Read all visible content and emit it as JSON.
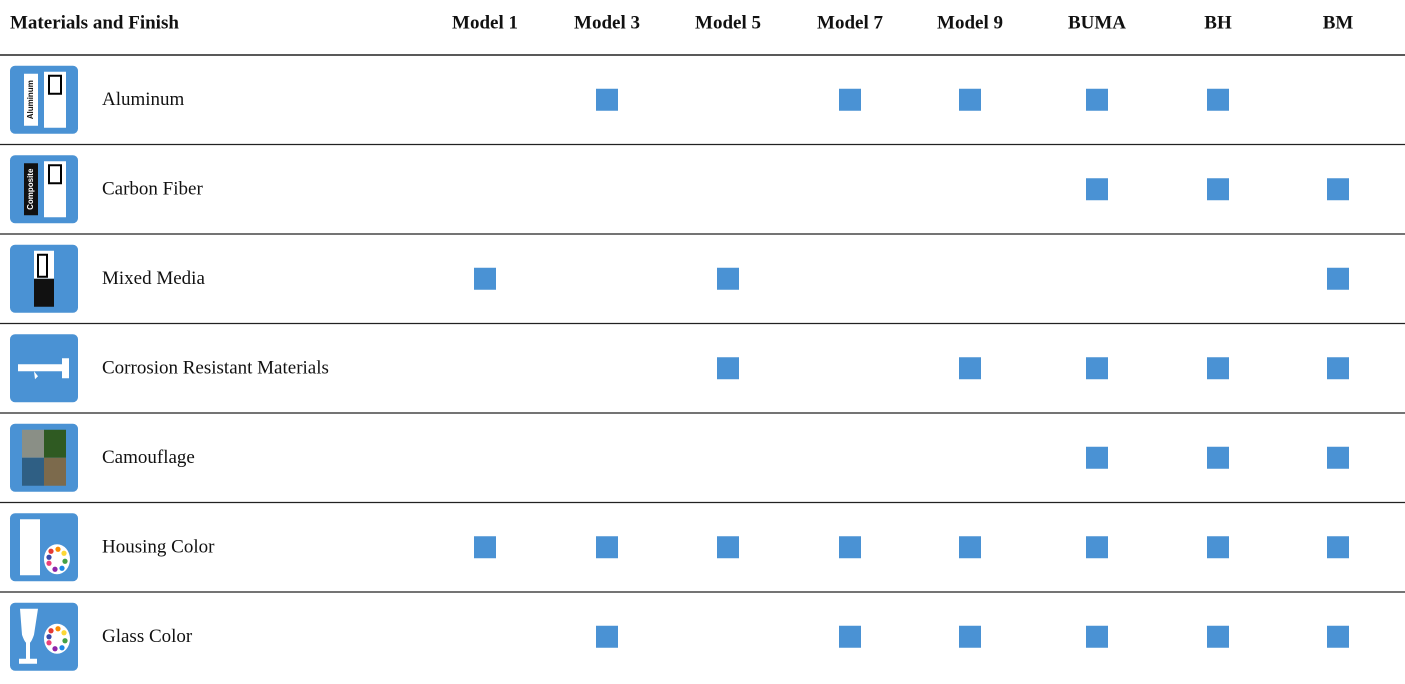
{
  "table": {
    "header": [
      "Materials and Finish",
      "Model 1",
      "Model 3",
      "Model 5",
      "Model 7",
      "Model 9",
      "BUMA",
      "BH",
      "BM"
    ],
    "rows": [
      {
        "icon_text": "Aluminum",
        "label": "Aluminum",
        "available": [
          false,
          true,
          false,
          true,
          true,
          true,
          true,
          false
        ]
      },
      {
        "icon_text": "Composite",
        "label": "Carbon Fiber",
        "available": [
          false,
          false,
          false,
          false,
          false,
          true,
          true,
          true
        ]
      },
      {
        "label": "Mixed Media",
        "available": [
          true,
          false,
          true,
          false,
          false,
          false,
          false,
          true
        ]
      },
      {
        "label": "Corrosion Resistant Materials",
        "available": [
          false,
          false,
          true,
          false,
          true,
          true,
          true,
          true
        ]
      },
      {
        "label": "Camouflage",
        "available": [
          false,
          false,
          false,
          false,
          false,
          true,
          true,
          true
        ]
      },
      {
        "label": "Housing Color",
        "available": [
          true,
          true,
          true,
          true,
          true,
          true,
          true,
          true
        ]
      },
      {
        "label": "Glass Color",
        "available": [
          false,
          true,
          false,
          true,
          true,
          true,
          true,
          true
        ]
      }
    ]
  }
}
